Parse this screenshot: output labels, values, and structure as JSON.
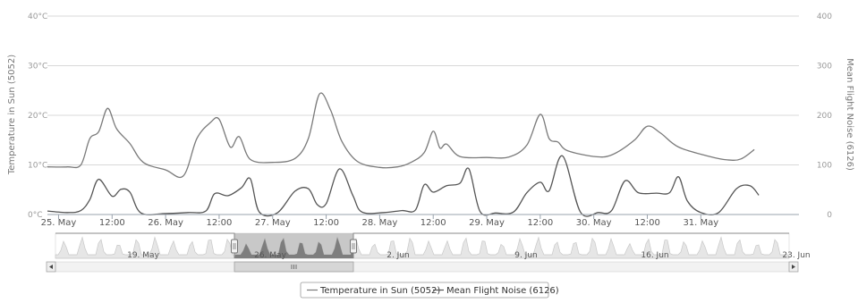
{
  "chart_data": {
    "type": "line",
    "title": "",
    "legend": {
      "placement": "bottom-center",
      "border": true
    },
    "grid": true,
    "x_axis": {
      "type": "datetime",
      "range": [
        "2014-05-24T21:30",
        "2014-05-31T22:00"
      ],
      "ticks": [
        {
          "at": "2014-05-25T00:00",
          "label": "25. May"
        },
        {
          "at": "2014-05-25T12:00",
          "label": "12:00"
        },
        {
          "at": "2014-05-26T00:00",
          "label": "26. May"
        },
        {
          "at": "2014-05-26T12:00",
          "label": "12:00"
        },
        {
          "at": "2014-05-27T00:00",
          "label": "27. May"
        },
        {
          "at": "2014-05-27T12:00",
          "label": "12:00"
        },
        {
          "at": "2014-05-28T00:00",
          "label": "28. May"
        },
        {
          "at": "2014-05-28T12:00",
          "label": "12:00"
        },
        {
          "at": "2014-05-29T00:00",
          "label": "29. May"
        },
        {
          "at": "2014-05-29T12:00",
          "label": "12:00"
        },
        {
          "at": "2014-05-30T00:00",
          "label": "30. May"
        },
        {
          "at": "2014-05-30T12:00",
          "label": "12:00"
        },
        {
          "at": "2014-05-31T00:00",
          "label": "31. May"
        }
      ]
    },
    "y_axis_left": {
      "label": "Temperature in Sun (5052)",
      "range": [
        0,
        40
      ],
      "ticks": [
        0,
        10,
        20,
        30,
        40
      ],
      "tick_labels": [
        "0°C",
        "10°C",
        "20°C",
        "30°C",
        "40°C"
      ]
    },
    "y_axis_right": {
      "label": "Mean Flight Noise (6126)",
      "range": [
        0,
        400
      ],
      "ticks": [
        0,
        100,
        200,
        300,
        400
      ],
      "tick_labels": [
        "0",
        "100",
        "200",
        "300",
        "400"
      ]
    },
    "series": [
      {
        "name": "Temperature in Sun (5052)",
        "axis": "left",
        "color": "#7a7a7a",
        "points": [
          [
            "2014-05-24T21:30",
            9.6
          ],
          [
            "2014-05-25T02:00",
            9.6
          ],
          [
            "2014-05-25T05:00",
            10.0
          ],
          [
            "2014-05-25T07:00",
            15.3
          ],
          [
            "2014-05-25T09:00",
            16.7
          ],
          [
            "2014-05-25T11:00",
            21.4
          ],
          [
            "2014-05-25T13:00",
            17.3
          ],
          [
            "2014-05-25T16:00",
            14.3
          ],
          [
            "2014-05-25T19:00",
            10.5
          ],
          [
            "2014-05-26T00:00",
            9.0
          ],
          [
            "2014-05-26T04:00",
            7.8
          ],
          [
            "2014-05-26T07:00",
            15.3
          ],
          [
            "2014-05-26T10:00",
            18.5
          ],
          [
            "2014-05-26T12:00",
            19.2
          ],
          [
            "2014-05-26T14:30",
            13.6
          ],
          [
            "2014-05-26T16:30",
            15.7
          ],
          [
            "2014-05-26T19:00",
            11.1
          ],
          [
            "2014-05-27T00:00",
            10.5
          ],
          [
            "2014-05-27T05:00",
            11.3
          ],
          [
            "2014-05-27T08:00",
            15.3
          ],
          [
            "2014-05-27T10:30",
            24.3
          ],
          [
            "2014-05-27T13:00",
            21.0
          ],
          [
            "2014-05-27T15:30",
            14.8
          ],
          [
            "2014-05-27T19:00",
            10.7
          ],
          [
            "2014-05-28T00:00",
            9.5
          ],
          [
            "2014-05-28T04:00",
            9.6
          ],
          [
            "2014-05-28T07:00",
            10.5
          ],
          [
            "2014-05-28T10:00",
            12.5
          ],
          [
            "2014-05-28T12:00",
            16.8
          ],
          [
            "2014-05-28T13:30",
            13.4
          ],
          [
            "2014-05-28T15:00",
            14.2
          ],
          [
            "2014-05-28T18:00",
            11.7
          ],
          [
            "2014-05-29T00:00",
            11.5
          ],
          [
            "2014-05-29T05:00",
            11.6
          ],
          [
            "2014-05-29T09:00",
            14.0
          ],
          [
            "2014-05-29T12:00",
            20.2
          ],
          [
            "2014-05-29T14:00",
            15.3
          ],
          [
            "2014-05-29T16:00",
            14.6
          ],
          [
            "2014-05-29T18:00",
            12.9
          ],
          [
            "2014-05-30T00:00",
            11.7
          ],
          [
            "2014-05-30T04:00",
            12.0
          ],
          [
            "2014-05-30T09:00",
            14.9
          ],
          [
            "2014-05-30T12:00",
            17.8
          ],
          [
            "2014-05-30T15:00",
            16.4
          ],
          [
            "2014-05-30T19:00",
            13.6
          ],
          [
            "2014-05-31T02:00",
            11.7
          ],
          [
            "2014-05-31T06:00",
            11.0
          ],
          [
            "2014-05-31T09:00",
            11.2
          ],
          [
            "2014-05-31T12:00",
            13.1
          ]
        ]
      },
      {
        "name": "Mean Flight Noise (6126)",
        "axis": "right",
        "color": "#555555",
        "points": [
          [
            "2014-05-24T21:30",
            7
          ],
          [
            "2014-05-25T02:00",
            4
          ],
          [
            "2014-05-25T05:00",
            8
          ],
          [
            "2014-05-25T07:00",
            30
          ],
          [
            "2014-05-25T09:00",
            71
          ],
          [
            "2014-05-25T12:00",
            37
          ],
          [
            "2014-05-25T14:00",
            51
          ],
          [
            "2014-05-25T16:00",
            45
          ],
          [
            "2014-05-25T18:30",
            3
          ],
          [
            "2014-05-26T00:00",
            2
          ],
          [
            "2014-05-26T05:00",
            4
          ],
          [
            "2014-05-26T09:00",
            7
          ],
          [
            "2014-05-26T11:00",
            42
          ],
          [
            "2014-05-26T14:00",
            38
          ],
          [
            "2014-05-26T17:00",
            54
          ],
          [
            "2014-05-26T19:00",
            72
          ],
          [
            "2014-05-26T21:00",
            5
          ],
          [
            "2014-05-27T01:00",
            3
          ],
          [
            "2014-05-27T05:00",
            47
          ],
          [
            "2014-05-27T08:00",
            52
          ],
          [
            "2014-05-27T10:00",
            20
          ],
          [
            "2014-05-27T12:00",
            22
          ],
          [
            "2014-05-27T15:00",
            92
          ],
          [
            "2014-05-27T18:00",
            38
          ],
          [
            "2014-05-27T20:00",
            5
          ],
          [
            "2014-05-28T01:00",
            4
          ],
          [
            "2014-05-28T05:00",
            8
          ],
          [
            "2014-05-28T08:00",
            9
          ],
          [
            "2014-05-28T10:00",
            60
          ],
          [
            "2014-05-28T12:00",
            45
          ],
          [
            "2014-05-28T15:00",
            58
          ],
          [
            "2014-05-28T18:00",
            63
          ],
          [
            "2014-05-28T20:00",
            92
          ],
          [
            "2014-05-28T22:30",
            6
          ],
          [
            "2014-05-29T02:00",
            3
          ],
          [
            "2014-05-29T06:00",
            5
          ],
          [
            "2014-05-29T09:00",
            44
          ],
          [
            "2014-05-29T12:00",
            65
          ],
          [
            "2014-05-29T14:00",
            48
          ],
          [
            "2014-05-29T17:00",
            118
          ],
          [
            "2014-05-29T21:00",
            5
          ],
          [
            "2014-05-30T01:00",
            4
          ],
          [
            "2014-05-30T04:00",
            8
          ],
          [
            "2014-05-30T07:00",
            68
          ],
          [
            "2014-05-30T10:00",
            44
          ],
          [
            "2014-05-30T14:00",
            43
          ],
          [
            "2014-05-30T17:00",
            44
          ],
          [
            "2014-05-30T19:00",
            76
          ],
          [
            "2014-05-30T21:00",
            27
          ],
          [
            "2014-05-31T00:00",
            4
          ],
          [
            "2014-05-31T04:00",
            4
          ],
          [
            "2014-05-31T08:00",
            52
          ],
          [
            "2014-05-31T11:00",
            58
          ],
          [
            "2014-05-31T13:00",
            39
          ]
        ]
      }
    ]
  },
  "navigator": {
    "labels": [
      "19. May",
      "26. May",
      "2. Jun",
      "9. Jun",
      "16. Jun",
      "23. Jun"
    ],
    "scroll_left_icon": "left-arrow-icon",
    "scroll_right_icon": "right-arrow-icon",
    "scrollbar_grip_icon": "grip-icon"
  },
  "colors": {
    "temperature": "#7a7a7a",
    "noise": "#555555",
    "grid": "#d8d8d8",
    "navigator_fill": "#e6e6e6",
    "navigator_selected_fill": "#9a9a9a"
  }
}
